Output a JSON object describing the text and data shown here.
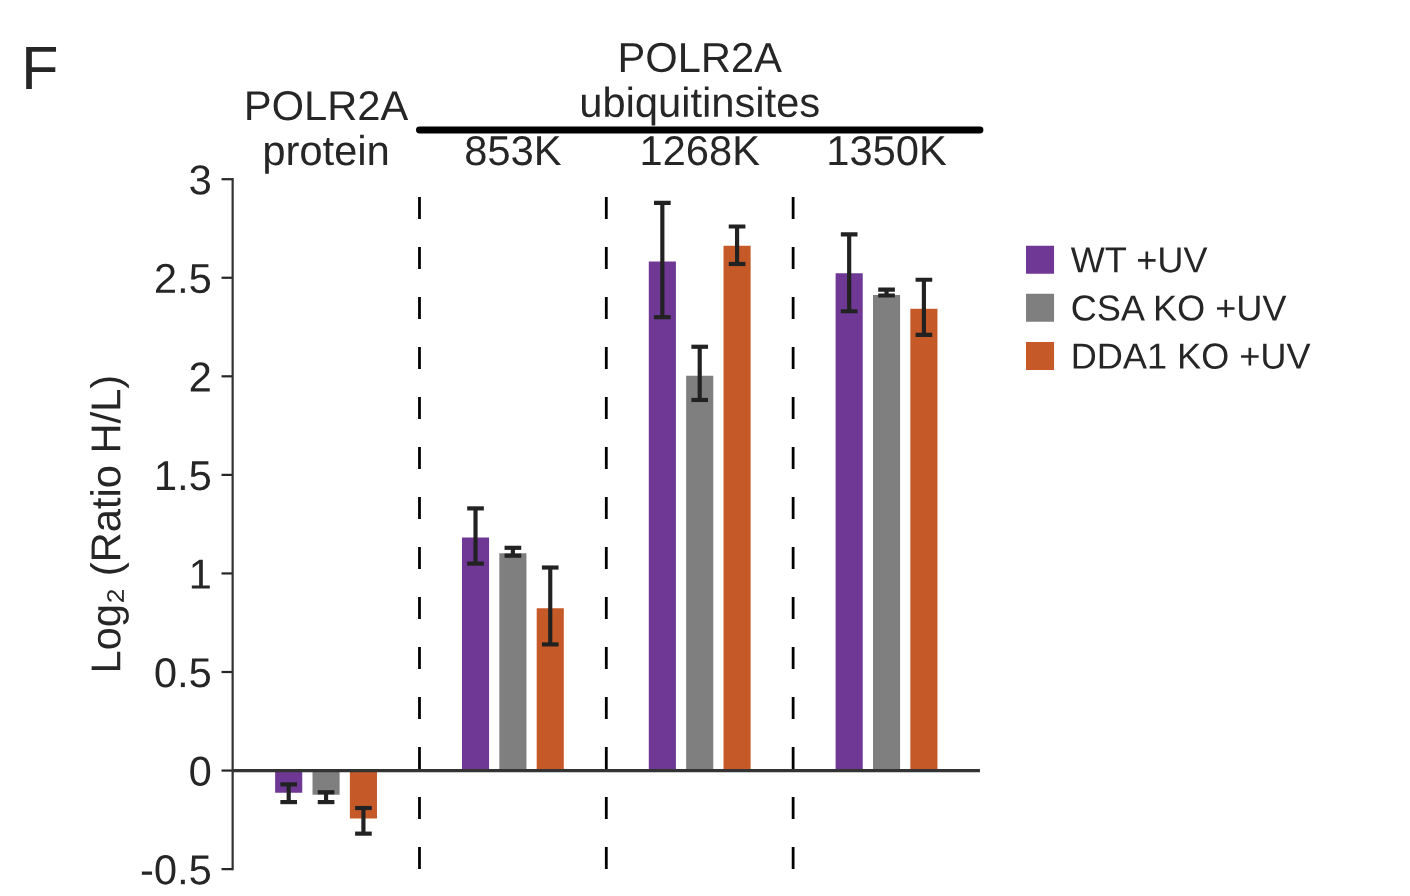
{
  "chart_data": {
    "type": "bar",
    "categories": [
      "POLR2A\nprotein",
      "853K",
      "1268K",
      "1350K"
    ],
    "series": [
      {
        "name": "WT +UV",
        "color": "#6f3894",
        "values": [
          -0.12,
          1.19,
          2.59,
          2.53
        ],
        "errors": [
          [
            -0.16,
            -0.07
          ],
          [
            1.05,
            1.33
          ],
          [
            2.3,
            2.88
          ],
          [
            2.33,
            2.72
          ]
        ]
      },
      {
        "name": "CSA KO +UV",
        "color": "#7f7f7f",
        "values": [
          -0.13,
          1.11,
          2.01,
          2.42
        ],
        "errors": [
          [
            -0.16,
            -0.11
          ],
          [
            1.09,
            1.13
          ],
          [
            1.88,
            2.15
          ],
          [
            2.41,
            2.44
          ]
        ]
      },
      {
        "name": "DDA1 KO +UV",
        "color": "#c55a28",
        "values": [
          -0.25,
          0.83,
          2.67,
          2.35
        ],
        "errors": [
          [
            -0.32,
            -0.19
          ],
          [
            0.64,
            1.03
          ],
          [
            2.57,
            2.76
          ],
          [
            2.21,
            2.49
          ]
        ]
      }
    ],
    "ylabel": "Log₂ (Ratio H/L)",
    "ylim": [
      -0.5,
      3
    ],
    "yticks": [
      {
        "value": -0.5,
        "label": "-0.5"
      },
      0,
      0.5,
      1,
      1.5,
      2,
      2.5,
      3
    ],
    "annotations": [
      "F",
      "POLR2A\nubiquitinsites"
    ],
    "legend": "right",
    "grid": false
  }
}
